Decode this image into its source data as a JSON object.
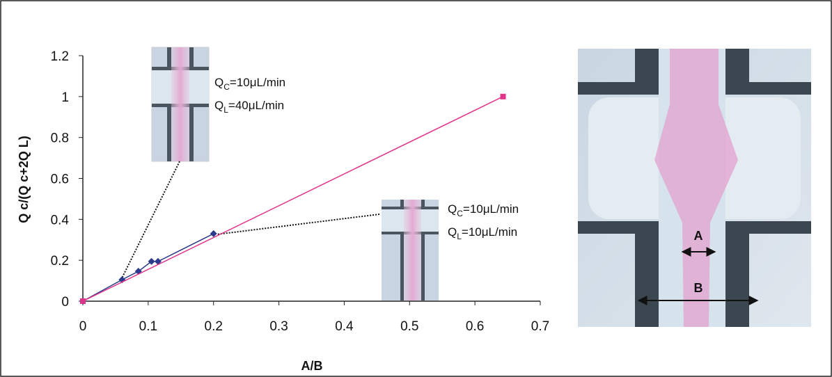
{
  "chart_data": {
    "type": "line",
    "xlabel": "A/B",
    "ylabel": "Q c/(Q c+2Q L)",
    "xlim": [
      0,
      0.7
    ],
    "ylim": [
      0,
      1.2
    ],
    "xticks": [
      0,
      0.1,
      0.2,
      0.3,
      0.4,
      0.5,
      0.6,
      0.7
    ],
    "yticks": [
      0,
      0.2,
      0.4,
      0.6,
      0.8,
      1,
      1.2
    ],
    "series": [
      {
        "color": "#2b3a8c",
        "marker": "diamond",
        "x": [
          0,
          0.06,
          0.085,
          0.105,
          0.115,
          0.2
        ],
        "values": [
          0,
          0.105,
          0.146,
          0.194,
          0.194,
          0.33
        ]
      },
      {
        "color": "#e0338a",
        "marker": "square",
        "x": [
          0,
          0.643
        ],
        "values": [
          0,
          1
        ]
      }
    ],
    "annotations": [
      {
        "lines": [
          {
            "q": "Q",
            "sub": "C",
            "rest": "=10μL/min"
          },
          {
            "q": "Q",
            "sub": "L",
            "rest": "=40μL/min"
          }
        ]
      },
      {
        "lines": [
          {
            "q": "Q",
            "sub": "C",
            "rest": "=10μL/min"
          },
          {
            "q": "Q",
            "sub": "L",
            "rest": "=10μL/min"
          }
        ]
      }
    ],
    "photo_labels": [
      "A",
      "B"
    ]
  }
}
